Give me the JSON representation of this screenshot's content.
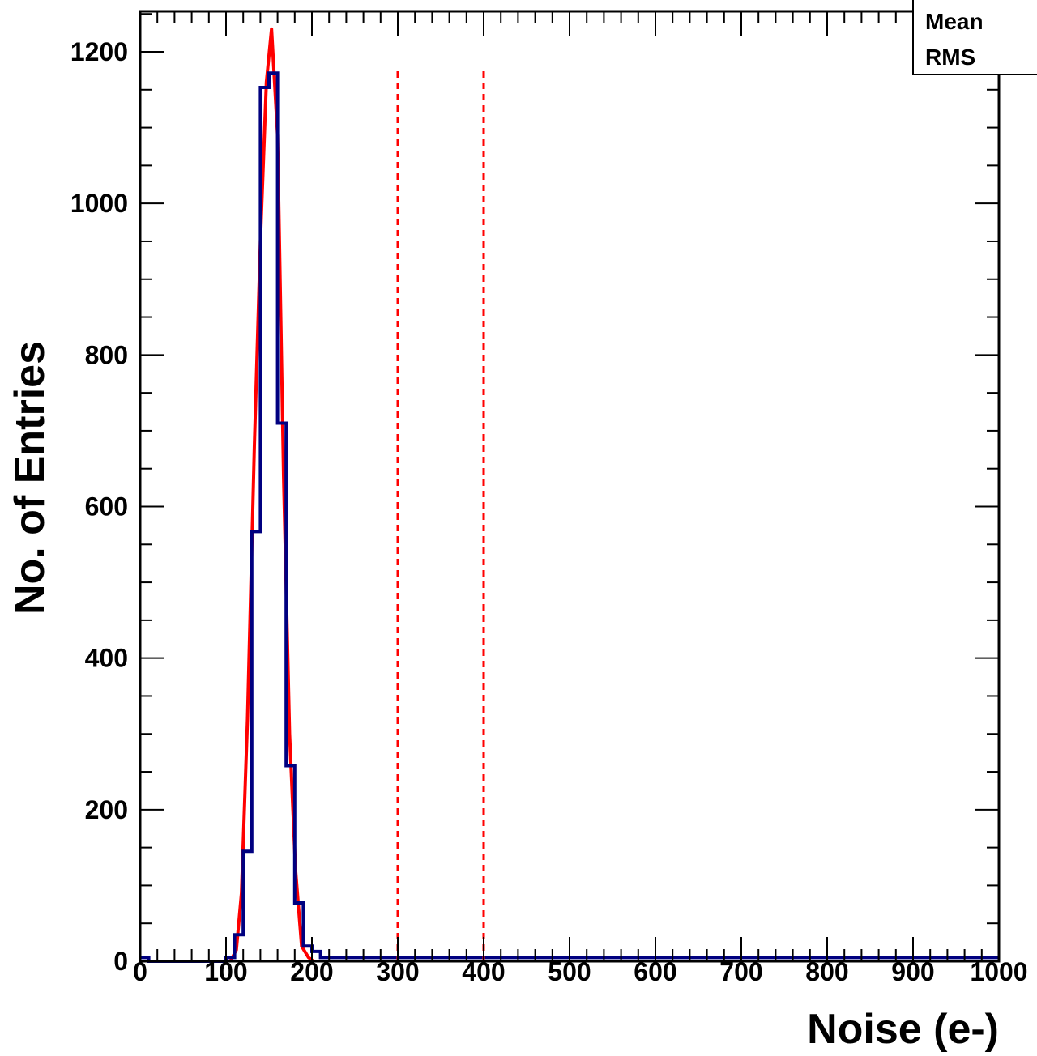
{
  "chart_data": {
    "type": "histogram",
    "title": "",
    "xlabel": "Noise (e-)",
    "ylabel": "No. of Entries",
    "xlim": [
      0,
      1000
    ],
    "ylim": [
      0,
      1260
    ],
    "x_ticks": [
      0,
      100,
      200,
      300,
      400,
      500,
      600,
      700,
      800,
      900,
      1000
    ],
    "x_tick_labels": [
      "0",
      "100",
      "200",
      "300",
      "400",
      "500",
      "600",
      "700",
      "800",
      "900",
      "1000"
    ],
    "y_ticks": [
      0,
      200,
      400,
      600,
      800,
      1000,
      1200
    ],
    "y_tick_labels": [
      "0",
      "200",
      "400",
      "600",
      "800",
      "1000",
      "1200"
    ],
    "grid": false,
    "histogram": {
      "color": "#000080",
      "bin_width": 10,
      "bin_edges": [
        0,
        10,
        100,
        110,
        120,
        130,
        140,
        150,
        160,
        170,
        180,
        190,
        200,
        210,
        1000
      ],
      "counts": [
        5,
        0,
        5,
        35,
        145,
        567,
        1153,
        1172,
        710,
        258,
        77,
        20,
        13,
        5
      ]
    },
    "fit": {
      "type": "gaussian",
      "color": "#ff0000",
      "amplitude": 1230,
      "mean": 153,
      "sigma": 16.5,
      "x": [
        105,
        112,
        118,
        125,
        133,
        140,
        147,
        153,
        160,
        167,
        174,
        181,
        188,
        196,
        202
      ],
      "y": [
        0,
        15,
        90,
        320,
        680,
        950,
        1160,
        1230,
        1090,
        640,
        300,
        120,
        20,
        5,
        0
      ]
    },
    "threshold_lines": {
      "color": "#ff0000",
      "style": "dashed",
      "x": [
        300,
        400
      ]
    },
    "stats_box": {
      "labels": [
        "Mean",
        "RMS"
      ]
    }
  }
}
